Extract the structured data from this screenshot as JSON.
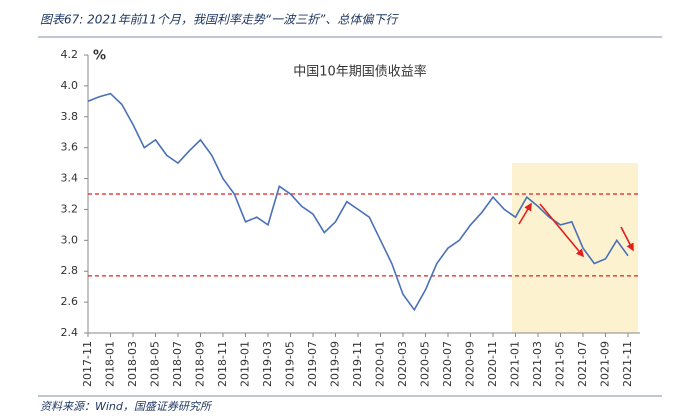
{
  "header": {
    "title": "图表67:  2021年前11个月，我国利率走势“一波三折”、总体偏下行"
  },
  "footer": {
    "source": "资料来源：Wind，国盛证券研究所"
  },
  "chart_data": {
    "type": "line",
    "title": "中国10年期国债收益率",
    "y_unit": "%",
    "categories": [
      "2017-11",
      null,
      "2018-01",
      null,
      "2018-03",
      null,
      "2018-05",
      null,
      "2018-07",
      null,
      "2018-09",
      null,
      "2018-11",
      null,
      "2019-01",
      null,
      "2019-03",
      null,
      "2019-05",
      null,
      "2019-07",
      null,
      "2019-09",
      null,
      "2019-11",
      null,
      "2020-01",
      null,
      "2020-03",
      null,
      "2020-05",
      null,
      "2020-07",
      null,
      "2020-09",
      null,
      "2020-11",
      null,
      "2021-01",
      null,
      "2021-03",
      null,
      "2021-05",
      null,
      "2021-07",
      null,
      "2021-09",
      null,
      "2021-11"
    ],
    "series": [
      {
        "name": "中国10年期国债收益率",
        "color": "#4a70b8",
        "values": [
          3.9,
          3.93,
          3.95,
          3.88,
          3.75,
          3.6,
          3.65,
          3.55,
          3.5,
          3.58,
          3.65,
          3.55,
          3.4,
          3.3,
          3.12,
          3.15,
          3.1,
          3.35,
          3.3,
          3.22,
          3.17,
          3.05,
          3.12,
          3.25,
          3.2,
          3.15,
          3.0,
          2.85,
          2.65,
          2.55,
          2.68,
          2.85,
          2.95,
          3.0,
          3.1,
          3.18,
          3.28,
          3.2,
          3.15,
          3.28,
          3.22,
          3.15,
          3.1,
          3.12,
          2.95,
          2.85,
          2.88,
          3.0,
          2.9
        ]
      }
    ],
    "ylim": [
      2.4,
      4.2
    ],
    "yticks": [
      2.4,
      2.6,
      2.8,
      {
        "value": 3,
        "label": "3.0"
      },
      3.2,
      3.4,
      3.6,
      3.8,
      {
        "value": 4,
        "label": "4.0"
      },
      4.2
    ],
    "reference_lines": [
      {
        "value": 3.3,
        "color": "#e02020"
      },
      {
        "value": 2.77,
        "color": "#e02020"
      }
    ]
  }
}
